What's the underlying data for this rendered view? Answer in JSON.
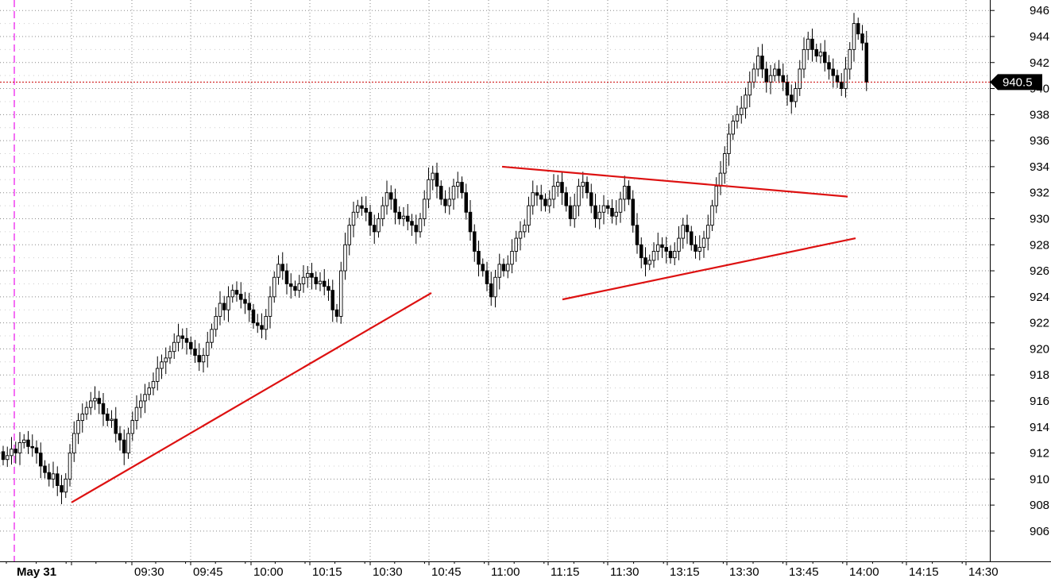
{
  "chart_data": {
    "type": "candlestick",
    "grid": true,
    "y_axis_side": "right",
    "ylim": [
      904.5,
      946.5
    ],
    "y_ticks": [
      906,
      908,
      910,
      912,
      914,
      916,
      918,
      920,
      922,
      924,
      926,
      928,
      930,
      932,
      934,
      936,
      938,
      940,
      942,
      944,
      946
    ],
    "x_date_label": "May 31",
    "x_ticks": [
      "09:30",
      "09:45",
      "10:00",
      "10:15",
      "10:30",
      "10:45",
      "11:00",
      "11:15",
      "11:30",
      "13:15",
      "13:30",
      "13:45",
      "14:00",
      "14:15",
      "14:30"
    ],
    "last_price": 940.5,
    "last_price_label": "940.5",
    "colors": {
      "trendline": "#dd1111",
      "last_price_line": "#cc0000",
      "session_marker": "#ee22ee",
      "candle_up_fill": "#ffffff",
      "candle_down_fill": "#000000",
      "grid": "#888888"
    },
    "candle_closes": [
      911.5,
      911.8,
      912.3,
      912.0,
      912.8,
      913.0,
      912.5,
      912.4,
      912.0,
      911.0,
      910.5,
      910.0,
      910.4,
      909.5,
      909.0,
      910.0,
      912.0,
      913.5,
      914.5,
      915.0,
      915.5,
      916.0,
      916.2,
      915.8,
      915.0,
      914.5,
      914.6,
      913.5,
      913.0,
      912.0,
      913.5,
      914.5,
      915.5,
      916.0,
      916.5,
      917.0,
      917.5,
      918.5,
      919.0,
      919.3,
      919.8,
      920.5,
      921.0,
      920.8,
      920.5,
      920.0,
      919.5,
      919.0,
      919.5,
      920.5,
      921.5,
      922.5,
      923.5,
      923.0,
      924.0,
      924.5,
      924.2,
      923.8,
      923.5,
      923.0,
      922.0,
      921.8,
      921.5,
      922.5,
      924.0,
      925.5,
      926.5,
      926.0,
      925.0,
      924.8,
      924.5,
      925.0,
      925.5,
      925.8,
      925.5,
      925.0,
      925.2,
      924.8,
      924.5,
      923.0,
      922.5,
      926.0,
      928.0,
      929.5,
      930.5,
      931.0,
      930.8,
      930.5,
      929.5,
      929.0,
      930.0,
      931.0,
      932.0,
      931.5,
      930.5,
      930.0,
      930.2,
      929.8,
      929.5,
      929.0,
      930.0,
      931.5,
      933.0,
      933.5,
      932.5,
      931.5,
      931.0,
      931.5,
      932.5,
      932.8,
      932.0,
      930.5,
      929.0,
      927.5,
      926.5,
      926.0,
      925.0,
      924.0,
      925.5,
      926.5,
      926.0,
      926.5,
      927.5,
      928.5,
      929.0,
      929.5,
      931.0,
      932.0,
      931.8,
      931.5,
      931.0,
      931.5,
      932.5,
      932.8,
      932.0,
      931.0,
      930.0,
      931.0,
      932.5,
      932.8,
      932.0,
      931.0,
      930.0,
      930.5,
      931.0,
      930.8,
      930.2,
      930.5,
      931.5,
      932.5,
      931.5,
      929.5,
      928.0,
      927.0,
      926.5,
      926.8,
      927.5,
      928.0,
      927.8,
      927.5,
      927.0,
      927.5,
      928.5,
      929.5,
      929.0,
      928.0,
      927.5,
      927.8,
      928.5,
      929.5,
      931.0,
      932.5,
      933.5,
      935.0,
      936.5,
      937.5,
      938.0,
      938.5,
      939.5,
      940.5,
      941.5,
      942.5,
      941.5,
      940.5,
      941.0,
      941.5,
      941.0,
      940.5,
      939.5,
      939.0,
      940.0,
      941.5,
      943.0,
      943.8,
      943.0,
      942.5,
      942.8,
      942.0,
      941.5,
      941.0,
      940.5,
      940.0,
      941.5,
      943.0,
      945.0,
      944.2,
      943.5,
      940.5
    ]
  }
}
